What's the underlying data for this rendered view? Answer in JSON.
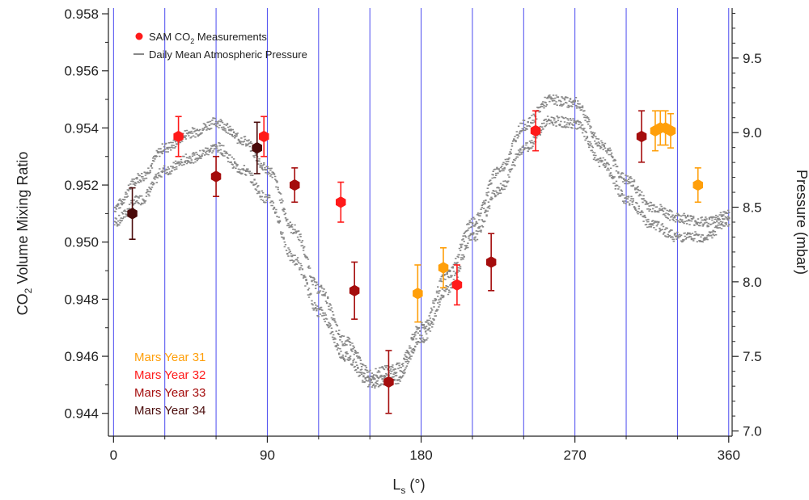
{
  "chart_data": {
    "type": "scatter",
    "title": "",
    "xlabel": "L",
    "xlabel_sub": "s",
    "xlabel_unit": " (°)",
    "ylabel_prefix": "CO",
    "ylabel_sub": "2",
    "ylabel_rest": " Volume Mixing Ratio",
    "y2label": "Pressure (mbar)",
    "xlim": [
      -3,
      362
    ],
    "ylim": [
      0.9432,
      0.9582
    ],
    "y2lim": [
      6.965,
      9.835
    ],
    "xticks": [
      "0",
      "90",
      "180",
      "270",
      "360"
    ],
    "xtick_values": [
      0,
      90,
      180,
      270,
      360
    ],
    "yticks": [
      "0.944",
      "0.946",
      "0.948",
      "0.950",
      "0.952",
      "0.954",
      "0.956",
      "0.958"
    ],
    "ytick_values": [
      0.944,
      0.946,
      0.948,
      0.95,
      0.952,
      0.954,
      0.956,
      0.958
    ],
    "y2ticks": [
      "7.0",
      "7.5",
      "8.0",
      "8.5",
      "9.0",
      "9.5"
    ],
    "y2tick_values": [
      7.0,
      7.5,
      8.0,
      8.5,
      9.0,
      9.5
    ],
    "vertical_gridlines_x": [
      0,
      30,
      60,
      90,
      120,
      150,
      180,
      210,
      240,
      270,
      300,
      330,
      360
    ],
    "grid_color": "#4a4aef",
    "legend": {
      "position": "top-left",
      "entries": [
        {
          "label_prefix": "SAM CO",
          "label_sub": "2",
          "label_rest": " Measurements",
          "marker": "circle",
          "color": "#ff1a1a"
        },
        {
          "label": "Daily Mean Atmospheric Pressure",
          "marker": "dash",
          "color": "#888888"
        }
      ]
    },
    "year_labels": [
      {
        "text": "Mars Year 31",
        "color": "#ff9f0a"
      },
      {
        "text": "Mars Year 32",
        "color": "#ff1a1a"
      },
      {
        "text": "Mars Year 33",
        "color": "#a50d0d"
      },
      {
        "text": "Mars Year 34",
        "color": "#4a0a0a"
      }
    ],
    "series": [
      {
        "name": "Mars Year 31",
        "color": "#ff9f0a",
        "points": [
          {
            "x": 178,
            "y": 0.9482,
            "err": 0.001
          },
          {
            "x": 193,
            "y": 0.9491,
            "err": 0.0007
          },
          {
            "x": 317,
            "y": 0.9539,
            "err": 0.0007
          },
          {
            "x": 320,
            "y": 0.954,
            "err": 0.0006
          },
          {
            "x": 323,
            "y": 0.954,
            "err": 0.0006
          },
          {
            "x": 326,
            "y": 0.9539,
            "err": 0.0006
          },
          {
            "x": 342,
            "y": 0.952,
            "err": 0.0006
          }
        ]
      },
      {
        "name": "Mars Year 32",
        "color": "#ff1a1a",
        "points": [
          {
            "x": 38,
            "y": 0.9537,
            "err": 0.0007
          },
          {
            "x": 88,
            "y": 0.9537,
            "err": 0.0007
          },
          {
            "x": 133,
            "y": 0.9514,
            "err": 0.0007
          },
          {
            "x": 201,
            "y": 0.9485,
            "err": 0.0007
          },
          {
            "x": 247,
            "y": 0.9539,
            "err": 0.0007
          }
        ]
      },
      {
        "name": "Mars Year 33",
        "color": "#a50d0d",
        "points": [
          {
            "x": 60,
            "y": 0.9523,
            "err": 0.0007
          },
          {
            "x": 106,
            "y": 0.952,
            "err": 0.0006
          },
          {
            "x": 141,
            "y": 0.9483,
            "err": 0.001
          },
          {
            "x": 161,
            "y": 0.9451,
            "err": 0.0011
          },
          {
            "x": 221,
            "y": 0.9493,
            "err": 0.001
          },
          {
            "x": 309,
            "y": 0.9537,
            "err": 0.0009
          }
        ]
      },
      {
        "name": "Mars Year 34",
        "color": "#4a0a0a",
        "points": [
          {
            "x": 11,
            "y": 0.951,
            "err": 0.0009
          },
          {
            "x": 84,
            "y": 0.9533,
            "err": 0.0009
          }
        ]
      }
    ],
    "pressure_envelope": {
      "color": "#888888",
      "x": [
        0,
        15,
        30,
        45,
        60,
        75,
        90,
        105,
        120,
        135,
        150,
        165,
        180,
        195,
        210,
        225,
        240,
        255,
        270,
        285,
        300,
        315,
        330,
        345,
        360
      ],
      "upper": [
        8.5,
        8.7,
        8.9,
        9.0,
        9.07,
        8.95,
        8.75,
        8.35,
        7.95,
        7.6,
        7.38,
        7.42,
        7.7,
        8.05,
        8.4,
        8.75,
        9.05,
        9.22,
        9.2,
        8.92,
        8.68,
        8.5,
        8.43,
        8.4,
        8.45
      ],
      "lower": [
        8.4,
        8.55,
        8.75,
        8.83,
        8.9,
        8.75,
        8.55,
        8.15,
        7.8,
        7.5,
        7.32,
        7.35,
        7.62,
        7.95,
        8.3,
        8.62,
        8.9,
        9.08,
        9.06,
        8.8,
        8.55,
        8.38,
        8.3,
        8.3,
        8.4
      ]
    }
  }
}
